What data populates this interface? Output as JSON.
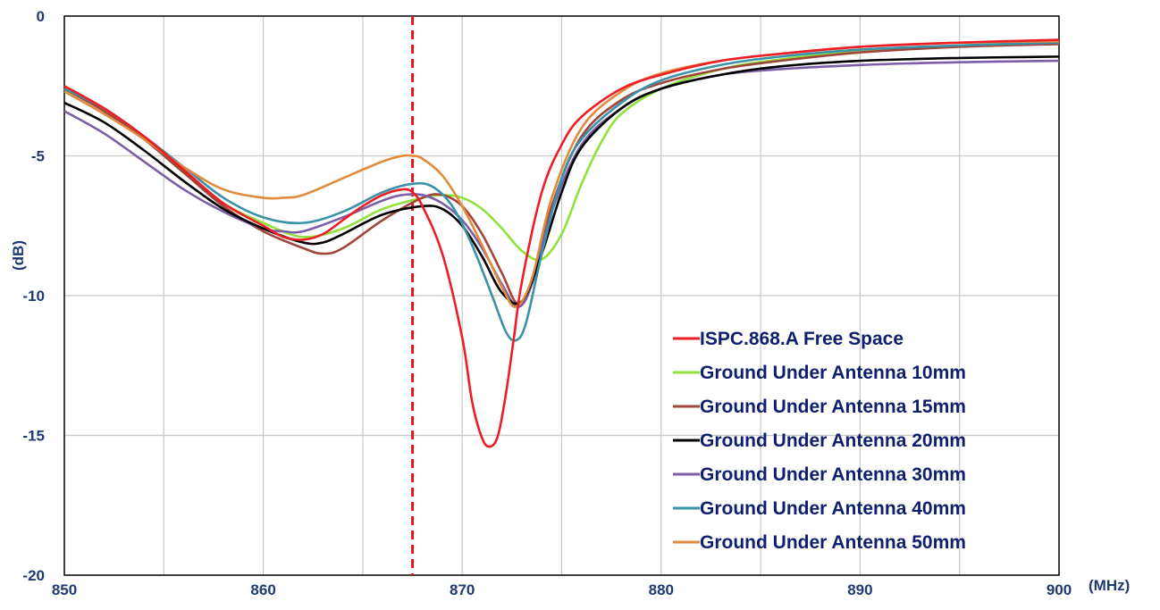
{
  "chart_data": {
    "type": "line",
    "title": "",
    "xlabel": "(MHz)",
    "ylabel": "(dB)",
    "xlim": [
      850,
      900
    ],
    "ylim": [
      -20,
      0
    ],
    "x_ticks": [
      850,
      860,
      870,
      880,
      890,
      900
    ],
    "y_ticks": [
      0,
      -5,
      -10,
      -15,
      -20
    ],
    "x_tick_labels": [
      "850",
      "860",
      "870",
      "880",
      "890",
      "900"
    ],
    "y_tick_labels": [
      "0",
      "-5",
      "-10",
      "-15",
      "-20"
    ],
    "grid": true,
    "legend_position": "bottom-right",
    "marker_line": {
      "x": 867.5,
      "color": "#e8141c",
      "style": "dashed"
    },
    "series": [
      {
        "name": "ISPC.868.A Free Space",
        "color": "#ee1c24",
        "x": [
          850,
          852,
          854,
          856,
          858,
          860,
          861,
          862,
          863,
          864,
          865,
          866,
          867,
          867.5,
          868,
          869,
          870,
          870.5,
          871,
          871.4,
          871.8,
          872.2,
          872.6,
          873,
          874,
          875,
          876,
          878,
          880,
          883,
          886,
          890,
          895,
          900
        ],
        "y": [
          -2.5,
          -3.3,
          -4.3,
          -5.5,
          -6.7,
          -7.5,
          -7.9,
          -8.0,
          -7.8,
          -7.3,
          -6.8,
          -6.4,
          -6.2,
          -6.3,
          -6.8,
          -8.5,
          -11.5,
          -13.8,
          -15.1,
          -15.4,
          -15.0,
          -13.5,
          -11.5,
          -9.5,
          -6.3,
          -4.6,
          -3.6,
          -2.6,
          -2.1,
          -1.6,
          -1.35,
          -1.1,
          -0.95,
          -0.85
        ]
      },
      {
        "name": "Ground Under Antenna 10mm",
        "color": "#8ee23a",
        "x": [
          850,
          852,
          854,
          856,
          858,
          860,
          862,
          864,
          866,
          868,
          869,
          870,
          871,
          872,
          873,
          874,
          875,
          876,
          877,
          878,
          880,
          883,
          886,
          890,
          895,
          900
        ],
        "y": [
          -2.6,
          -3.4,
          -4.4,
          -5.6,
          -6.7,
          -7.4,
          -7.9,
          -7.6,
          -6.9,
          -6.5,
          -6.4,
          -6.5,
          -6.9,
          -7.6,
          -8.4,
          -8.7,
          -7.8,
          -6.0,
          -4.5,
          -3.5,
          -2.6,
          -1.9,
          -1.55,
          -1.25,
          -1.05,
          -0.95
        ]
      },
      {
        "name": "Ground Under Antenna 15mm",
        "color": "#a0453a",
        "x": [
          850,
          852,
          854,
          856,
          858,
          860,
          862,
          863,
          864,
          866,
          868,
          869,
          870,
          871,
          872,
          872.8,
          873.5,
          874.5,
          876,
          878,
          880,
          883,
          886,
          890,
          895,
          900
        ],
        "y": [
          -2.6,
          -3.4,
          -4.4,
          -5.6,
          -6.8,
          -7.7,
          -8.3,
          -8.5,
          -8.3,
          -7.3,
          -6.5,
          -6.4,
          -6.8,
          -7.8,
          -9.2,
          -10.3,
          -9.5,
          -6.8,
          -4.3,
          -3.0,
          -2.4,
          -1.9,
          -1.6,
          -1.3,
          -1.1,
          -1.0
        ]
      },
      {
        "name": "Ground Under Antenna 20mm",
        "color": "#000000",
        "x": [
          850,
          852,
          854,
          856,
          858,
          860,
          862,
          863,
          864,
          866,
          868,
          869,
          870,
          871,
          872,
          873,
          874,
          875,
          876,
          878,
          880,
          883,
          886,
          890,
          895,
          900
        ],
        "y": [
          -3.1,
          -3.8,
          -4.8,
          -5.9,
          -6.9,
          -7.6,
          -8.1,
          -8.1,
          -7.8,
          -7.1,
          -6.8,
          -6.9,
          -7.5,
          -8.6,
          -9.9,
          -10.2,
          -8.5,
          -6.3,
          -4.7,
          -3.3,
          -2.6,
          -2.1,
          -1.8,
          -1.6,
          -1.5,
          -1.45
        ]
      },
      {
        "name": "Ground Under Antenna 30mm",
        "color": "#7b5ea7",
        "x": [
          850,
          852,
          854,
          856,
          858,
          860,
          861,
          862,
          864,
          866,
          867,
          868,
          869,
          870,
          871,
          872,
          872.8,
          873.5,
          874.5,
          876,
          878,
          880,
          883,
          886,
          890,
          895,
          900
        ],
        "y": [
          -3.4,
          -4.2,
          -5.2,
          -6.2,
          -7.0,
          -7.6,
          -7.7,
          -7.7,
          -7.2,
          -6.6,
          -6.4,
          -6.4,
          -6.7,
          -7.3,
          -8.3,
          -9.6,
          -10.4,
          -9.6,
          -7.0,
          -4.6,
          -3.3,
          -2.6,
          -2.1,
          -1.9,
          -1.75,
          -1.65,
          -1.6
        ]
      },
      {
        "name": "Ground Under Antenna 40mm",
        "color": "#3a92a8",
        "x": [
          850,
          852,
          854,
          856,
          858,
          860,
          862,
          864,
          866,
          867.5,
          868.5,
          869.5,
          870.5,
          871.5,
          872.2,
          872.7,
          873.2,
          874,
          875,
          876,
          878,
          880,
          883,
          886,
          890,
          895,
          900
        ],
        "y": [
          -2.6,
          -3.3,
          -4.3,
          -5.4,
          -6.5,
          -7.2,
          -7.4,
          -7.0,
          -6.3,
          -6.0,
          -6.1,
          -6.8,
          -8.2,
          -10.0,
          -11.3,
          -11.6,
          -11.0,
          -8.5,
          -5.8,
          -4.4,
          -3.1,
          -2.3,
          -1.75,
          -1.45,
          -1.2,
          -1.05,
          -0.95
        ]
      },
      {
        "name": "Ground Under Antenna 50mm",
        "color": "#e08a3c",
        "x": [
          850,
          852,
          854,
          856,
          858,
          860,
          861,
          862,
          864,
          866,
          867,
          867.5,
          868,
          869,
          870,
          871,
          872,
          872.7,
          873.5,
          874.5,
          876,
          878,
          880,
          883,
          886,
          890,
          895,
          900
        ],
        "y": [
          -2.7,
          -3.5,
          -4.4,
          -5.4,
          -6.2,
          -6.5,
          -6.5,
          -6.4,
          -5.8,
          -5.2,
          -5.0,
          -5.0,
          -5.1,
          -5.7,
          -6.8,
          -8.2,
          -9.7,
          -10.4,
          -9.4,
          -6.5,
          -4.0,
          -2.7,
          -2.05,
          -1.6,
          -1.35,
          -1.1,
          -0.95,
          -0.9
        ]
      }
    ]
  }
}
